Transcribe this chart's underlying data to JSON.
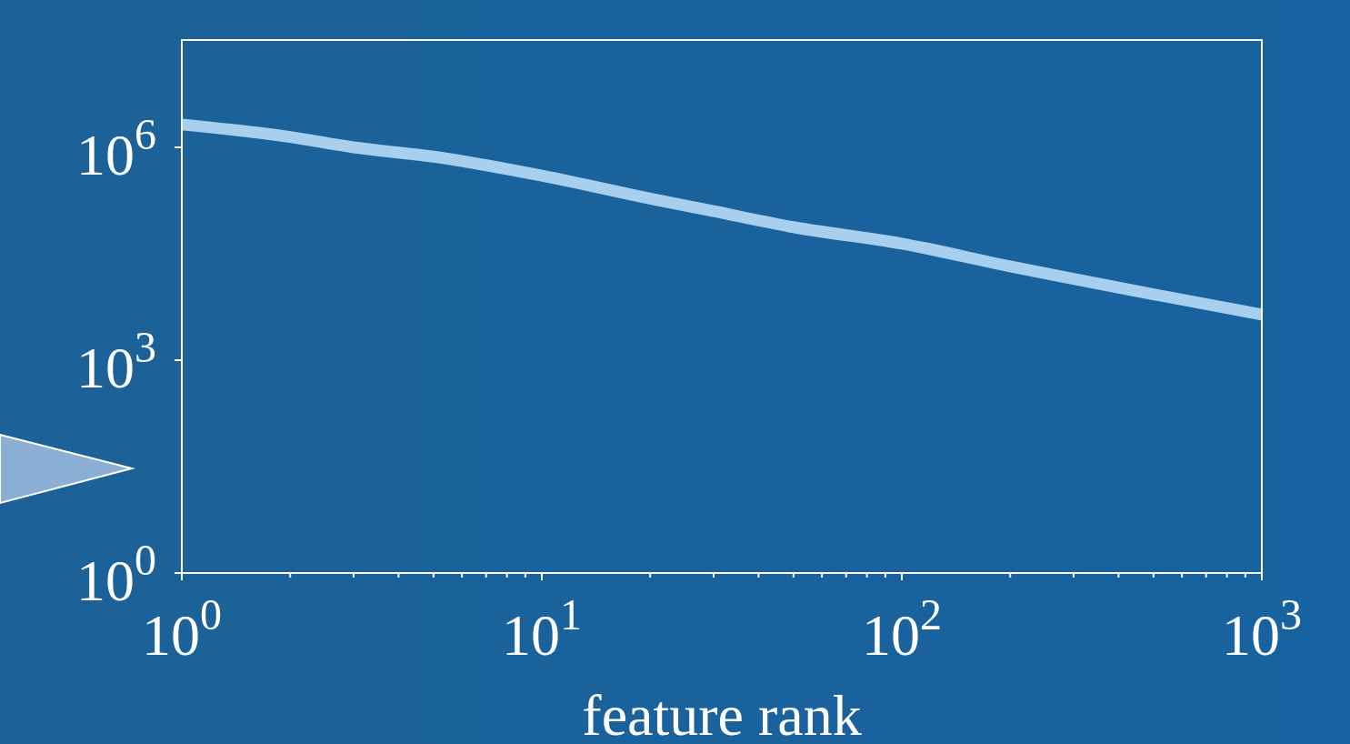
{
  "chart_data": {
    "type": "line",
    "xlabel": "feature rank",
    "log": "xy",
    "x": [
      1,
      2,
      3,
      5,
      10,
      20,
      30,
      50,
      100,
      200,
      300,
      500,
      1000
    ],
    "series": [
      {
        "color": "#a8cfee",
        "values": [
          2100000,
          1400000,
          1000000,
          740000,
          400000,
          190000,
          126000,
          75000,
          44000,
          21000,
          14000,
          8500,
          4400
        ]
      }
    ],
    "xlim": [
      1,
      1000
    ],
    "ylim": [
      1,
      32600000
    ],
    "xticks": [
      {
        "value": 1,
        "label": "10$^{0}$"
      },
      {
        "value": 2,
        "label": null
      },
      {
        "value": 3,
        "label": null
      },
      {
        "value": 4,
        "label": null
      },
      {
        "value": 5,
        "label": null
      },
      {
        "value": 6,
        "label": null
      },
      {
        "value": 7,
        "label": null
      },
      {
        "value": 8,
        "label": null
      },
      {
        "value": 9,
        "label": null
      },
      {
        "value": 10,
        "label": "10$^{1}$"
      },
      {
        "value": 20,
        "label": null
      },
      {
        "value": 30,
        "label": null
      },
      {
        "value": 40,
        "label": null
      },
      {
        "value": 50,
        "label": null
      },
      {
        "value": 60,
        "label": null
      },
      {
        "value": 70,
        "label": null
      },
      {
        "value": 80,
        "label": null
      },
      {
        "value": 90,
        "label": null
      },
      {
        "value": 100,
        "label": "10$^{2}$"
      },
      {
        "value": 200,
        "label": null
      },
      {
        "value": 300,
        "label": null
      },
      {
        "value": 400,
        "label": null
      },
      {
        "value": 500,
        "label": null
      },
      {
        "value": 600,
        "label": null
      },
      {
        "value": 700,
        "label": null
      },
      {
        "value": 800,
        "label": null
      },
      {
        "value": 900,
        "label": null
      },
      {
        "value": 1000,
        "label": "10$^{3}$"
      }
    ],
    "yticks": [
      {
        "value": 1,
        "label": "10$^{0}$"
      },
      {
        "value": 1000,
        "label": "10$^{3}$"
      },
      {
        "value": 1000000,
        "label": "10$^{6}$"
      }
    ],
    "grid": false,
    "marker": "none",
    "line_style": "solid"
  }
}
